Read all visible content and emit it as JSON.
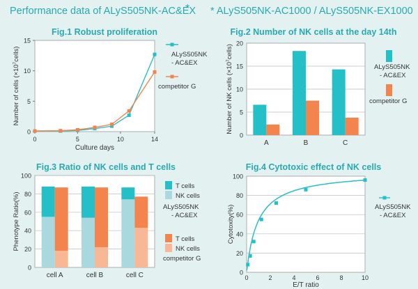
{
  "header": {
    "left": "Performance data of ALyS505NK-AC&EX",
    "star": "*",
    "right": "* ALyS505NK-AC1000 / ALyS505NK-EX1000"
  },
  "colors": {
    "teal": "#25bfc8",
    "orange": "#f4844d",
    "lightblue": "#a9d9de",
    "peach": "#f8b896",
    "title": "#2aa9b0"
  },
  "chart_data": [
    {
      "type": "line",
      "title": "Fig.1 Robust proliferation",
      "xlabel": "Culture days",
      "ylabel": "Number of cells (×10",
      "ylabel_sup": "7",
      "ylabel_end": "cells)",
      "xlim": [
        0,
        14
      ],
      "ylim": [
        0,
        15
      ],
      "xticks": [
        "0",
        "5",
        "10",
        "14"
      ],
      "xtick_values": [
        0,
        5,
        10,
        14
      ],
      "yticks": [
        "0",
        "5",
        "10",
        "15"
      ],
      "ytick_values": [
        0,
        5,
        10,
        15
      ],
      "grid": false,
      "series": [
        {
          "name_line1": "ALyS505NK",
          "name_line2": "- AC&EX",
          "color": "#25bfc8",
          "x": [
            0,
            3,
            5,
            7,
            9,
            11,
            14
          ],
          "y": [
            0.1,
            0.1,
            0.2,
            0.5,
            0.9,
            2.7,
            12.7
          ]
        },
        {
          "name_line1": "competitor G",
          "name_line2": "",
          "color": "#f4844d",
          "x": [
            0,
            3,
            5,
            7,
            9,
            11,
            14
          ],
          "y": [
            0.1,
            0.15,
            0.3,
            0.7,
            1.2,
            3.4,
            9.8
          ]
        }
      ]
    },
    {
      "type": "bar",
      "title": "Fig.2 Number of NK cells at the day 14th",
      "xlabel": "",
      "ylabel": "Number of NK cells (×10",
      "ylabel_sup": "7",
      "ylabel_end": "cells)",
      "categories": [
        "A",
        "B",
        "C"
      ],
      "ylim": [
        0,
        20
      ],
      "yticks": [
        "0",
        "5",
        "10",
        "15",
        "20"
      ],
      "ytick_values": [
        0,
        5,
        10,
        15,
        20
      ],
      "grid": true,
      "series": [
        {
          "name_line1": "ALyS505NK",
          "name_line2": "- AC&EX",
          "color": "#25bfc8",
          "values": [
            6.6,
            18.3,
            14.3
          ]
        },
        {
          "name_line1": "competitor G",
          "name_line2": "",
          "color": "#f4844d",
          "values": [
            2.3,
            7.5,
            3.8
          ]
        }
      ]
    },
    {
      "type": "bar",
      "title": "Fig.3 Ratio of NK cells and T cells",
      "xlabel": "",
      "ylabel": "Phenotype Ratio(%)",
      "categories": [
        "cell A",
        "cell B",
        "cell C"
      ],
      "ylim": [
        0,
        100
      ],
      "yticks": [
        "0",
        "20",
        "40",
        "60",
        "80",
        "100"
      ],
      "ytick_values": [
        0,
        20,
        40,
        60,
        80,
        100
      ],
      "grid": true,
      "series": [
        {
          "group": "ALyS505NK - AC&EX",
          "name": "T cells",
          "color": "#25bfc8",
          "values": [
            33,
            34,
            13
          ]
        },
        {
          "group": "ALyS505NK - AC&EX",
          "name": "NK cells",
          "color": "#a9d9de",
          "values": [
            55,
            54,
            74
          ]
        },
        {
          "group": "competitor G",
          "name": "T cells",
          "color": "#f4844d",
          "values": [
            69,
            65,
            34
          ]
        },
        {
          "group": "competitor G",
          "name": "NK cells",
          "color": "#f8b896",
          "values": [
            18,
            22,
            43
          ]
        }
      ],
      "legend": {
        "groupA_label1": "ALyS505NK",
        "groupA_label2": "- AC&EX",
        "groupB_label": "competitor G",
        "t_cells": "T cells",
        "nk_cells": "NK cells"
      }
    },
    {
      "type": "scatter",
      "title": "Fig.4 Cytotoxic effect of NK cells",
      "xlabel": "E/T ratio",
      "ylabel": "Cytotoxity(%)",
      "xlim": [
        0,
        10
      ],
      "ylim": [
        0,
        100
      ],
      "xticks": [
        "0",
        "2",
        "4",
        "6",
        "8",
        "10"
      ],
      "xtick_values": [
        0,
        2,
        4,
        6,
        8,
        10
      ],
      "yticks": [
        "0",
        "20",
        "40",
        "60",
        "80",
        "100"
      ],
      "ytick_values": [
        0,
        20,
        40,
        60,
        80,
        100
      ],
      "grid": true,
      "series": [
        {
          "name_line1": "ALyS505NK",
          "name_line2": "- AC&EX",
          "color": "#25bfc8",
          "x": [
            0.1,
            0.3,
            0.6,
            1.25,
            2.5,
            5,
            10
          ],
          "y": [
            8,
            17,
            32,
            55,
            72,
            86,
            96
          ]
        }
      ]
    }
  ]
}
